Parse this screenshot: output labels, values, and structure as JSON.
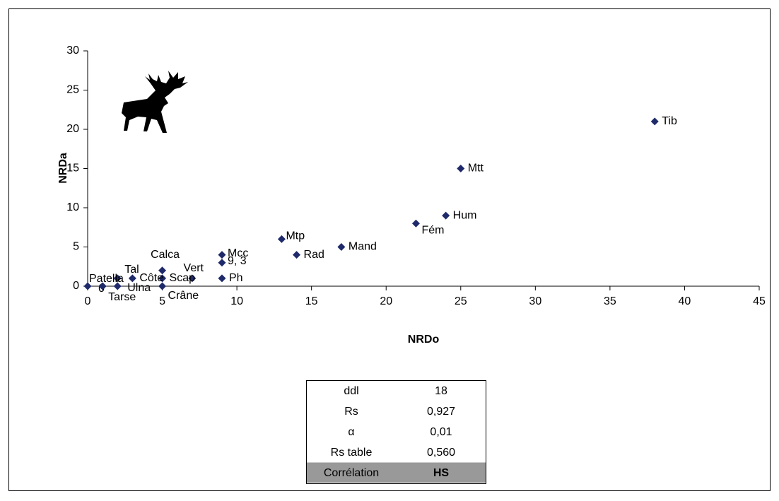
{
  "chart_data": {
    "type": "scatter",
    "x_label": "NRDo",
    "y_label": "NRDa",
    "color": "#1f2a6b",
    "x": [
      38,
      25,
      24,
      22,
      17,
      14,
      13,
      9,
      9,
      9,
      7,
      5,
      5,
      5,
      3,
      2,
      0,
      1,
      2,
      1
    ],
    "values": [
      21,
      15,
      9,
      8,
      5,
      4,
      6,
      4,
      3,
      1,
      1,
      2,
      1,
      0,
      1,
      1,
      0,
      0,
      0,
      0
    ],
    "point_labels": [
      "Tib",
      "Mtt",
      "Hum",
      "Fém",
      "Mand",
      "Rad",
      "Mtp",
      "Mcc",
      "9, 3",
      "Ph",
      "Vert",
      "Calca",
      "Scap",
      "Crâne",
      "Côte",
      "Tal",
      "Patella",
      "0",
      "Ulna",
      "Tarse"
    ],
    "xlim": [
      0,
      45
    ],
    "xticks": [
      0,
      5,
      10,
      15,
      20,
      25,
      30,
      35,
      40,
      45
    ],
    "ylim": [
      0,
      30
    ],
    "yticks": [
      0,
      5,
      10,
      15,
      20,
      25,
      30
    ]
  },
  "table": {
    "rows": [
      [
        "ddl",
        "18"
      ],
      [
        "Rs",
        "0,927"
      ],
      [
        "α",
        "0,01"
      ],
      [
        "Rs table",
        "0,560"
      ],
      [
        "Corrélation",
        "HS"
      ]
    ]
  }
}
